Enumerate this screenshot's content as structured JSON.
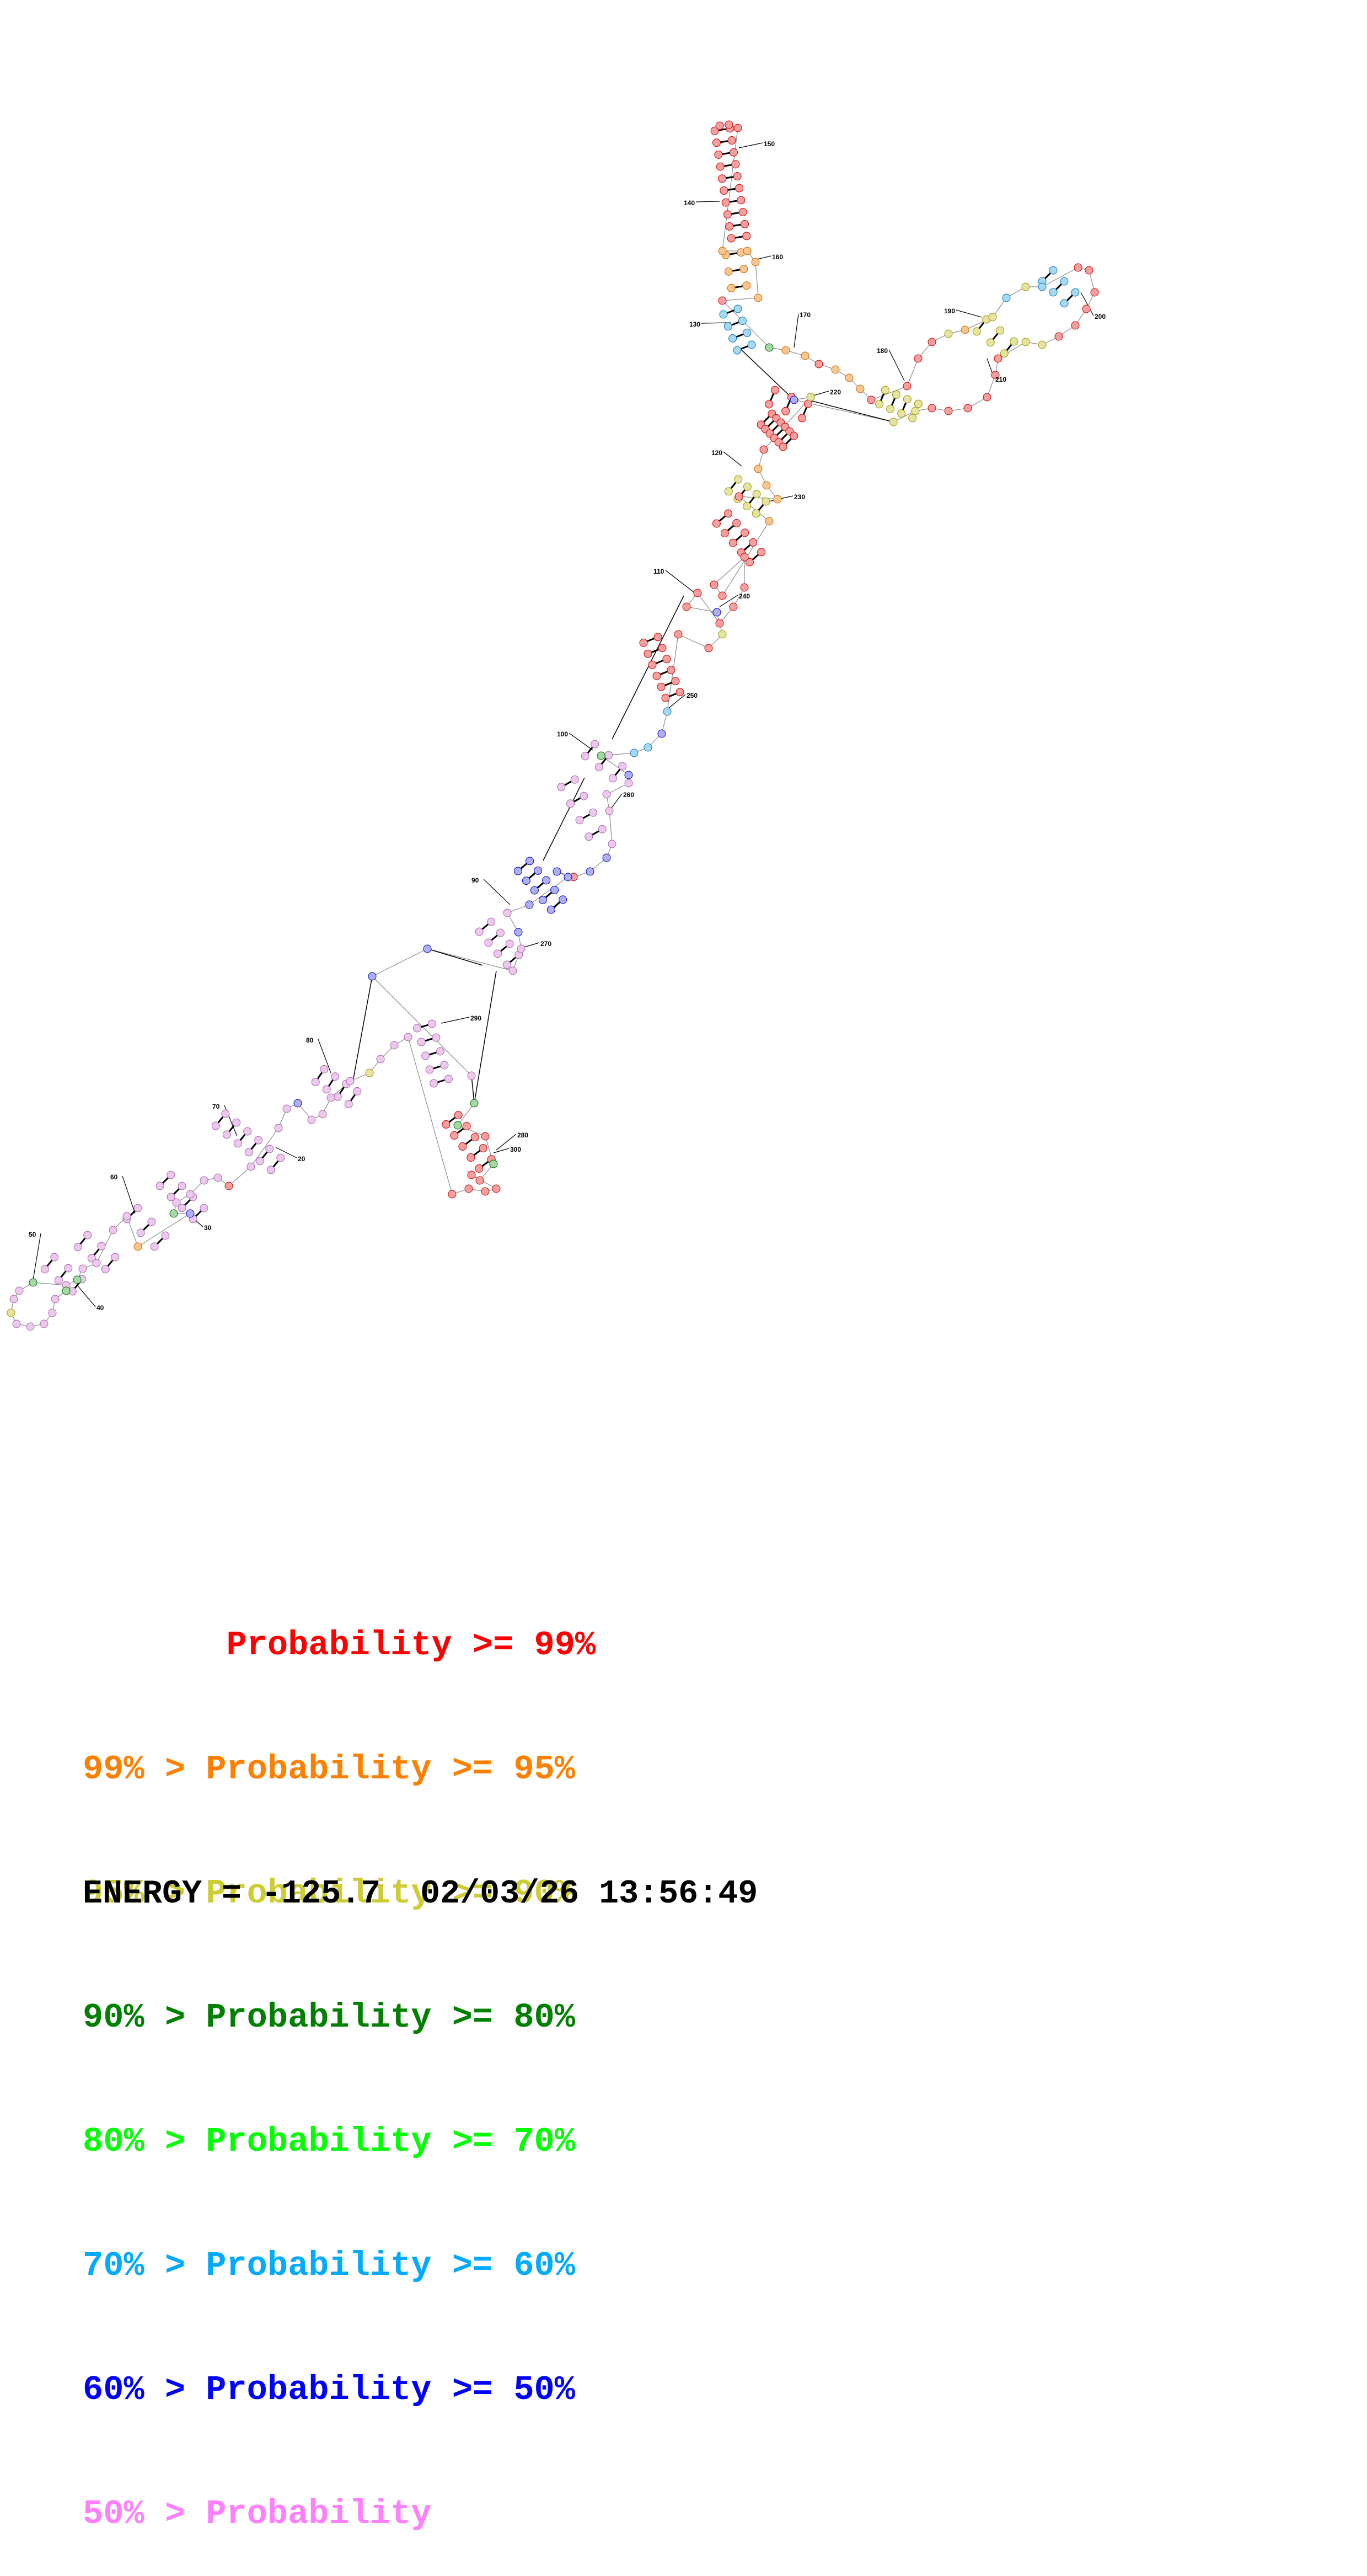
{
  "colors": {
    "c99": "#ff0000",
    "c95": "#ff8000",
    "c90": "#cccc33",
    "c80": "#008000",
    "c70": "#00ff00",
    "c60": "#00aaff",
    "c50": "#0000ff",
    "clow": "#ff80ff"
  },
  "index_labels": [
    "20",
    "30",
    "40",
    "50",
    "60",
    "70",
    "80",
    "90",
    "100",
    "110",
    "120",
    "130",
    "140",
    "150",
    "160",
    "170",
    "180",
    "190",
    "200",
    "210",
    "220",
    "230",
    "240",
    "250",
    "260",
    "270",
    "280",
    "290",
    "300"
  ],
  "legend": [
    {
      "prefix": "       ",
      "label": "Probability >= 99%",
      "prefix_color": "c99",
      "color": "c99"
    },
    {
      "prefix": "99% > ",
      "label": "Probability >= 95%",
      "prefix_color": "c95",
      "color": "c95"
    },
    {
      "prefix": "95% > ",
      "label": "Probability >= 90%",
      "prefix_color": "c90",
      "color": "c90"
    },
    {
      "prefix": "90% > ",
      "label": "Probability >= 80%",
      "prefix_color": "c80",
      "color": "c80"
    },
    {
      "prefix": "80% > ",
      "label": "Probability >= 70%",
      "prefix_color": "c70",
      "color": "c70"
    },
    {
      "prefix": "70% > ",
      "label": "Probability >= 60%",
      "prefix_color": "c60",
      "color": "c60"
    },
    {
      "prefix": "60% > ",
      "label": "Probability >= 50%",
      "prefix_color": "c50",
      "color": "c50"
    },
    {
      "prefix": "50% > ",
      "label": "Probability",
      "prefix_color": "clow",
      "color": "clow"
    }
  ],
  "energy_text": "ENERGY = -125.7  02/03/26 13:56:49"
}
